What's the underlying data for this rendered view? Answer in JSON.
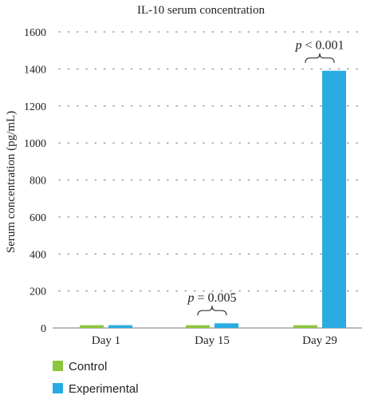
{
  "chart_data": {
    "type": "bar",
    "title": "IL-10 serum concentration",
    "ylabel": "Serum concentration (pg/mL)",
    "xlabel": "",
    "ylim": [
      0,
      1600
    ],
    "yticks": [
      0,
      200,
      400,
      600,
      800,
      1000,
      1200,
      1400,
      1600
    ],
    "grid": "dotted-horizontal",
    "legend_position": "bottom-left",
    "categories": [
      "Day 1",
      "Day 15",
      "Day 29"
    ],
    "series": [
      {
        "name": "Control",
        "color": "#8cc63f",
        "values": [
          15,
          15,
          15
        ]
      },
      {
        "name": "Experimental",
        "color": "#29abe2",
        "values": [
          15,
          25,
          1390
        ]
      }
    ],
    "annotations": [
      {
        "category": "Day 15",
        "p_symbol": "p",
        "p_value": " = 0.005"
      },
      {
        "category": "Day 29",
        "p_symbol": "p",
        "p_value": " < 0.001"
      }
    ]
  }
}
